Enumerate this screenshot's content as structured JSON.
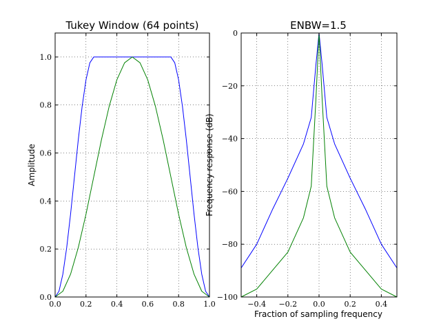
{
  "chart_data": [
    {
      "type": "line",
      "title": "Tukey Window (64 points)",
      "xlabel": "",
      "ylabel": "Amplitude",
      "xlim": [
        0.0,
        1.0
      ],
      "ylim": [
        0.0,
        1.1
      ],
      "xticks": [
        "0.0",
        "0.2",
        "0.4",
        "0.6",
        "0.8",
        "1.0"
      ],
      "yticks": [
        "0.0",
        "0.2",
        "0.4",
        "0.6",
        "0.8",
        "1.0"
      ],
      "grid": true,
      "series": [
        {
          "color": "#0000ff",
          "x": [
            0.0,
            0.025,
            0.05,
            0.075,
            0.1,
            0.125,
            0.15,
            0.175,
            0.2,
            0.225,
            0.25,
            0.3,
            0.5,
            0.7,
            0.75,
            0.775,
            0.8,
            0.825,
            0.85,
            0.875,
            0.9,
            0.925,
            0.95,
            0.975,
            1.0
          ],
          "values": [
            0.0,
            0.024,
            0.095,
            0.206,
            0.345,
            0.5,
            0.655,
            0.794,
            0.905,
            0.976,
            1.0,
            1.0,
            1.0,
            1.0,
            1.0,
            0.976,
            0.905,
            0.794,
            0.655,
            0.5,
            0.345,
            0.206,
            0.095,
            0.024,
            0.0
          ]
        },
        {
          "color": "#008000",
          "x": [
            0.0,
            0.05,
            0.1,
            0.15,
            0.2,
            0.25,
            0.3,
            0.35,
            0.4,
            0.45,
            0.5,
            0.55,
            0.6,
            0.65,
            0.7,
            0.75,
            0.8,
            0.85,
            0.9,
            0.95,
            1.0
          ],
          "values": [
            0.0,
            0.024,
            0.095,
            0.206,
            0.345,
            0.5,
            0.655,
            0.794,
            0.905,
            0.976,
            1.0,
            0.976,
            0.905,
            0.794,
            0.655,
            0.5,
            0.345,
            0.206,
            0.095,
            0.024,
            0.0
          ]
        }
      ]
    },
    {
      "type": "line",
      "title": "ENBW=1.5",
      "xlabel": "Fraction of sampling frequency",
      "ylabel": "Frequency response (dB)",
      "xlim": [
        -0.5,
        0.5
      ],
      "ylim": [
        -100,
        0
      ],
      "xticks": [
        "−0.4",
        "−0.2",
        "0.0",
        "0.2",
        "0.4"
      ],
      "yticks": [
        "0",
        "−20",
        "−40",
        "−60",
        "−80",
        "−100"
      ],
      "grid": true,
      "series": [
        {
          "color": "#0000ff",
          "x": [
            -0.5,
            -0.4,
            -0.3,
            -0.2,
            -0.1,
            -0.05,
            -0.02,
            0.0,
            0.02,
            0.05,
            0.1,
            0.2,
            0.3,
            0.4,
            0.5
          ],
          "values": [
            -89,
            -80,
            -67,
            -55,
            -42,
            -32,
            -12,
            0,
            -12,
            -32,
            -42,
            -55,
            -67,
            -80,
            -89
          ]
        },
        {
          "color": "#008000",
          "x": [
            -0.5,
            -0.4,
            -0.3,
            -0.2,
            -0.1,
            -0.05,
            -0.02,
            0.0,
            0.02,
            0.05,
            0.1,
            0.2,
            0.3,
            0.4,
            0.5
          ],
          "values": [
            -100,
            -97,
            -90,
            -83,
            -70,
            -58,
            -25,
            0,
            -25,
            -58,
            -70,
            -83,
            -90,
            -97,
            -100
          ]
        }
      ]
    }
  ]
}
